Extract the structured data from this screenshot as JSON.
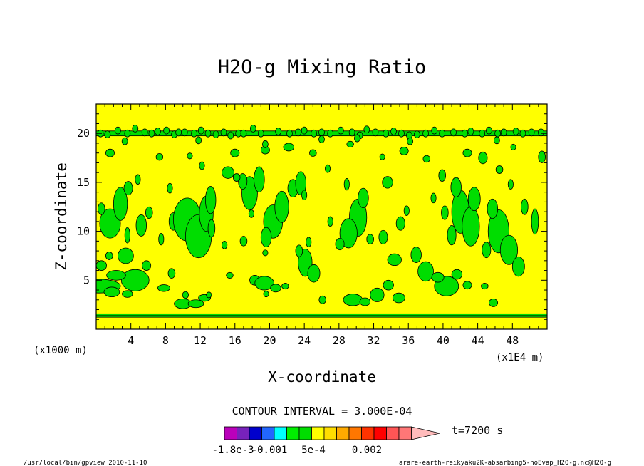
{
  "chart_data": {
    "type": "heatmap",
    "title": "H2O-g Mixing Ratio",
    "xlabel": "X-coordinate",
    "ylabel": "Z-coordinate",
    "x_unit_left": "(x1000 m)",
    "x_unit_right": "(x1E4 m)",
    "xlim": [
      0,
      52
    ],
    "ylim": [
      0,
      23
    ],
    "x_ticks": [
      4,
      8,
      12,
      16,
      20,
      24,
      28,
      32,
      36,
      40,
      44,
      48
    ],
    "x_tick_labels": [
      "4",
      "8",
      "12",
      "16",
      "20",
      "24",
      "28",
      "32",
      "36",
      "40",
      "44",
      "48"
    ],
    "y_ticks": [
      5,
      10,
      15,
      20
    ],
    "y_tick_labels": [
      "5",
      "10",
      "15",
      "20"
    ],
    "background_level_color": "#ffff00",
    "patch_level_color": "#00dd00",
    "bands": [
      {
        "z": 1.4,
        "thickness": 0.35
      },
      {
        "z": 20.0,
        "thickness": 0.5
      }
    ],
    "patches": [
      [
        0.4,
        4.4,
        2.4,
        0.7
      ],
      [
        4.5,
        5.0,
        1.6,
        1.1
      ],
      [
        2.3,
        5.5,
        1.1,
        0.5
      ],
      [
        1.8,
        3.8,
        0.9,
        0.5
      ],
      [
        3.6,
        3.6,
        0.6,
        0.35
      ],
      [
        7.8,
        4.2,
        0.7,
        0.35
      ],
      [
        10.0,
        2.6,
        1.0,
        0.5
      ],
      [
        11.5,
        2.6,
        0.9,
        0.4
      ],
      [
        12.5,
        3.2,
        0.7,
        0.35
      ],
      [
        10.3,
        3.5,
        0.35,
        0.35
      ],
      [
        13.0,
        3.5,
        0.3,
        0.3
      ],
      [
        0.6,
        6.5,
        0.6,
        0.5
      ],
      [
        1.5,
        7.5,
        0.4,
        0.4
      ],
      [
        3.4,
        7.5,
        0.9,
        0.8
      ],
      [
        3.6,
        9.6,
        0.3,
        0.8
      ],
      [
        1.6,
        10.8,
        1.2,
        1.5
      ],
      [
        0.6,
        12.3,
        0.4,
        0.6
      ],
      [
        2.8,
        12.8,
        0.8,
        1.7
      ],
      [
        5.8,
        6.5,
        0.5,
        0.5
      ],
      [
        5.2,
        10.6,
        0.6,
        1.1
      ],
      [
        6.1,
        11.9,
        0.4,
        0.6
      ],
      [
        7.5,
        9.2,
        0.3,
        0.6
      ],
      [
        8.9,
        11.0,
        0.5,
        0.9
      ],
      [
        8.7,
        5.7,
        0.4,
        0.5
      ],
      [
        3.7,
        14.4,
        0.5,
        0.7
      ],
      [
        4.8,
        15.3,
        0.3,
        0.5
      ],
      [
        8.5,
        14.4,
        0.3,
        0.5
      ],
      [
        10.5,
        11.2,
        1.6,
        2.2
      ],
      [
        11.8,
        9.5,
        1.5,
        2.2
      ],
      [
        12.7,
        11.8,
        0.8,
        1.8
      ],
      [
        13.2,
        13.2,
        0.6,
        1.4
      ],
      [
        13.3,
        10.3,
        0.4,
        0.9
      ],
      [
        17.7,
        13.9,
        0.9,
        1.7
      ],
      [
        18.8,
        15.3,
        0.6,
        1.3
      ],
      [
        16.9,
        15.1,
        0.5,
        0.8
      ],
      [
        15.2,
        16.0,
        0.7,
        0.6
      ],
      [
        16.2,
        15.5,
        0.4,
        0.4
      ],
      [
        20.4,
        11.0,
        1.1,
        1.7
      ],
      [
        21.4,
        12.5,
        0.8,
        1.6
      ],
      [
        22.7,
        14.4,
        0.6,
        0.9
      ],
      [
        23.6,
        14.9,
        0.6,
        1.2
      ],
      [
        19.6,
        9.4,
        0.6,
        1.0
      ],
      [
        24.0,
        13.7,
        0.3,
        0.5
      ],
      [
        15.4,
        5.5,
        0.4,
        0.3
      ],
      [
        18.3,
        5.0,
        0.6,
        0.5
      ],
      [
        19.4,
        4.7,
        1.1,
        0.7
      ],
      [
        20.7,
        4.2,
        0.6,
        0.4
      ],
      [
        21.8,
        4.4,
        0.4,
        0.3
      ],
      [
        19.6,
        3.6,
        0.3,
        0.3
      ],
      [
        17.0,
        9.0,
        0.4,
        0.5
      ],
      [
        14.8,
        8.6,
        0.3,
        0.4
      ],
      [
        19.5,
        7.8,
        0.3,
        0.3
      ],
      [
        24.1,
        6.8,
        0.8,
        1.4
      ],
      [
        25.1,
        5.7,
        0.7,
        0.9
      ],
      [
        23.4,
        8.0,
        0.4,
        0.6
      ],
      [
        24.5,
        8.9,
        0.3,
        0.5
      ],
      [
        17.9,
        11.8,
        0.3,
        0.4
      ],
      [
        30.2,
        11.4,
        1.0,
        1.9
      ],
      [
        29.1,
        9.8,
        1.0,
        1.5
      ],
      [
        30.8,
        13.4,
        0.6,
        1.0
      ],
      [
        28.1,
        8.7,
        0.5,
        0.6
      ],
      [
        27.0,
        11.0,
        0.3,
        0.5
      ],
      [
        28.9,
        14.8,
        0.3,
        0.6
      ],
      [
        31.6,
        9.2,
        0.4,
        0.5
      ],
      [
        29.6,
        3.0,
        1.1,
        0.6
      ],
      [
        31.0,
        2.8,
        0.6,
        0.4
      ],
      [
        32.4,
        3.5,
        0.8,
        0.7
      ],
      [
        33.7,
        4.5,
        0.6,
        0.5
      ],
      [
        34.9,
        3.2,
        0.7,
        0.5
      ],
      [
        33.1,
        9.4,
        0.5,
        0.7
      ],
      [
        34.4,
        7.1,
        0.8,
        0.6
      ],
      [
        35.1,
        10.8,
        0.5,
        0.7
      ],
      [
        36.9,
        7.6,
        0.6,
        0.8
      ],
      [
        38.0,
        5.9,
        0.9,
        1.0
      ],
      [
        33.6,
        15.0,
        0.6,
        0.6
      ],
      [
        35.8,
        12.1,
        0.3,
        0.5
      ],
      [
        26.1,
        3.0,
        0.4,
        0.4
      ],
      [
        42.0,
        12.0,
        1.0,
        2.2
      ],
      [
        43.2,
        10.5,
        1.0,
        2.0
      ],
      [
        41.5,
        14.5,
        0.6,
        1.0
      ],
      [
        43.6,
        13.3,
        0.7,
        1.2
      ],
      [
        41.0,
        9.6,
        0.5,
        1.0
      ],
      [
        40.2,
        11.9,
        0.4,
        0.7
      ],
      [
        40.4,
        4.4,
        1.4,
        1.0
      ],
      [
        39.4,
        5.3,
        0.7,
        0.5
      ],
      [
        41.6,
        5.6,
        0.6,
        0.5
      ],
      [
        42.8,
        4.5,
        0.5,
        0.4
      ],
      [
        38.9,
        13.4,
        0.3,
        0.5
      ],
      [
        39.9,
        15.7,
        0.4,
        0.6
      ],
      [
        46.4,
        10.0,
        1.2,
        2.2
      ],
      [
        47.6,
        8.1,
        1.0,
        1.5
      ],
      [
        45.7,
        12.3,
        0.6,
        1.0
      ],
      [
        48.7,
        6.4,
        0.7,
        1.0
      ],
      [
        45.0,
        8.1,
        0.5,
        0.8
      ],
      [
        50.6,
        11.0,
        0.4,
        1.3
      ],
      [
        49.4,
        12.5,
        0.4,
        0.8
      ],
      [
        45.8,
        2.7,
        0.5,
        0.4
      ],
      [
        44.8,
        4.4,
        0.4,
        0.3
      ],
      [
        47.8,
        14.8,
        0.3,
        0.5
      ],
      [
        46.5,
        16.3,
        0.4,
        0.4
      ],
      [
        1.6,
        18.0,
        0.5,
        0.4
      ],
      [
        7.3,
        17.6,
        0.4,
        0.35
      ],
      [
        10.8,
        17.7,
        0.3,
        0.3
      ],
      [
        16.0,
        18.0,
        0.5,
        0.4
      ],
      [
        19.5,
        18.3,
        0.5,
        0.4
      ],
      [
        22.2,
        18.6,
        0.6,
        0.4
      ],
      [
        25.0,
        18.0,
        0.4,
        0.35
      ],
      [
        29.3,
        18.9,
        0.4,
        0.3
      ],
      [
        35.5,
        18.2,
        0.5,
        0.4
      ],
      [
        38.1,
        17.4,
        0.4,
        0.35
      ],
      [
        42.8,
        18.0,
        0.5,
        0.4
      ],
      [
        44.6,
        17.5,
        0.5,
        0.6
      ],
      [
        48.1,
        18.6,
        0.3,
        0.3
      ],
      [
        51.4,
        17.6,
        0.4,
        0.6
      ],
      [
        12.2,
        16.7,
        0.3,
        0.4
      ],
      [
        26.7,
        16.4,
        0.3,
        0.4
      ],
      [
        33.0,
        17.6,
        0.3,
        0.3
      ]
    ],
    "spots": [
      [
        0.5,
        20.0
      ],
      [
        1.3,
        19.9
      ],
      [
        2.5,
        20.3
      ],
      [
        3.6,
        20.0
      ],
      [
        4.5,
        20.5
      ],
      [
        5.6,
        20.1
      ],
      [
        6.4,
        20.0
      ],
      [
        7.1,
        20.2
      ],
      [
        8.1,
        20.3
      ],
      [
        9.0,
        19.9
      ],
      [
        9.5,
        20.1
      ],
      [
        10.2,
        20.1
      ],
      [
        11.3,
        20.0
      ],
      [
        12.1,
        20.3
      ],
      [
        12.9,
        20.0
      ],
      [
        13.8,
        19.9
      ],
      [
        14.7,
        20.1
      ],
      [
        15.5,
        19.8
      ],
      [
        16.4,
        20.0
      ],
      [
        17.0,
        20.0
      ],
      [
        18.1,
        20.5
      ],
      [
        19.0,
        20.0
      ],
      [
        21.0,
        20.2
      ],
      [
        22.3,
        20.0
      ],
      [
        23.3,
        20.1
      ],
      [
        24.0,
        20.3
      ],
      [
        25.1,
        20.0
      ],
      [
        26.0,
        20.1
      ],
      [
        27.0,
        20.0
      ],
      [
        28.2,
        20.3
      ],
      [
        29.5,
        20.1
      ],
      [
        30.4,
        19.8
      ],
      [
        31.2,
        20.4
      ],
      [
        32.2,
        20.1
      ],
      [
        33.4,
        20.0
      ],
      [
        34.3,
        20.2
      ],
      [
        35.2,
        20.0
      ],
      [
        36.1,
        19.8
      ],
      [
        37.0,
        19.9
      ],
      [
        38.0,
        20.0
      ],
      [
        39.0,
        20.3
      ],
      [
        39.9,
        20.0
      ],
      [
        41.2,
        20.1
      ],
      [
        42.5,
        20.0
      ],
      [
        43.2,
        20.2
      ],
      [
        44.5,
        20.0
      ],
      [
        45.3,
        20.3
      ],
      [
        46.3,
        20.0
      ],
      [
        47.0,
        20.1
      ],
      [
        48.4,
        20.2
      ],
      [
        49.2,
        20.0
      ],
      [
        50.2,
        20.1
      ],
      [
        51.3,
        20.1
      ],
      [
        3.3,
        19.2
      ],
      [
        11.8,
        19.3
      ],
      [
        26.0,
        19.4
      ],
      [
        36.2,
        19.2
      ],
      [
        46.2,
        19.3
      ],
      [
        19.5,
        18.9
      ],
      [
        30.1,
        19.5
      ]
    ],
    "colorbar": {
      "colors": [
        "#bb00bb",
        "#7722bb",
        "#0000cc",
        "#2266ff",
        "#00ffff",
        "#00ee00",
        "#00dd00",
        "#ffff00",
        "#ffdd00",
        "#ffaa00",
        "#ff7700",
        "#ff3300",
        "#ff0000",
        "#ff5555",
        "#ff7777",
        "#ffbbbb"
      ],
      "labels": [
        "-1.8e-3",
        "-0.001",
        "5e-4",
        "0.002"
      ]
    },
    "contour_interval": "CONTOUR INTERVAL = 3.000E-04",
    "time_label": "t=7200 s",
    "footer_left": "/usr/local/bin/gpview  2010-11-10",
    "footer_right": "arare-earth-reikyaku2K-absarbing5-noEvap_H2O-g.nc@H2O-g"
  }
}
